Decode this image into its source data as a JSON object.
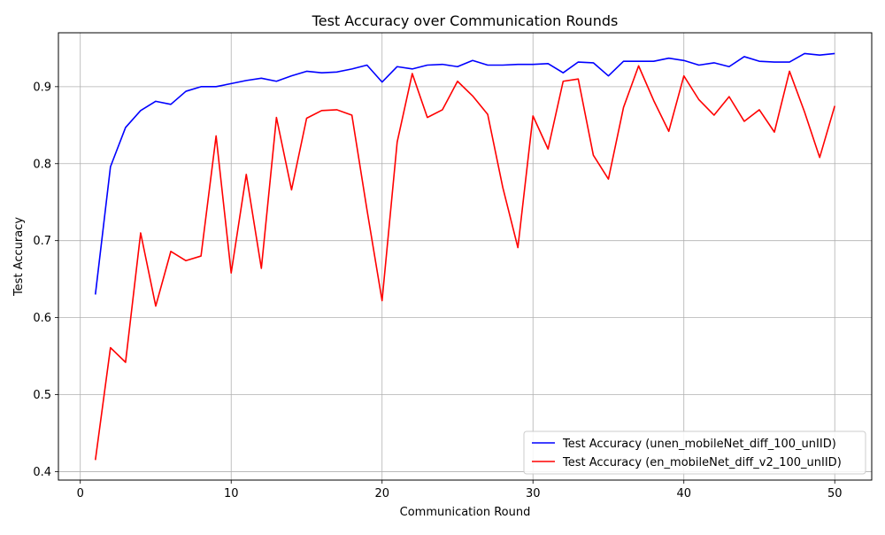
{
  "chart_data": {
    "type": "line",
    "title": "Test Accuracy over Communication Rounds",
    "xlabel": "Communication Round",
    "ylabel": "Test Accuracy",
    "xlim": [
      -1.45,
      52.45
    ],
    "ylim": [
      0.389,
      0.97
    ],
    "xticks": [
      0,
      10,
      20,
      30,
      40,
      50
    ],
    "yticks": [
      0.4,
      0.5,
      0.6,
      0.7,
      0.8,
      0.9
    ],
    "grid": true,
    "legend_position": "lower-right",
    "x": [
      1,
      2,
      3,
      4,
      5,
      6,
      7,
      8,
      9,
      10,
      11,
      12,
      13,
      14,
      15,
      16,
      17,
      18,
      19,
      20,
      21,
      22,
      23,
      24,
      25,
      26,
      27,
      28,
      29,
      30,
      31,
      32,
      33,
      34,
      35,
      36,
      37,
      38,
      39,
      40,
      41,
      42,
      43,
      44,
      45,
      46,
      47,
      48,
      49,
      50
    ],
    "series": [
      {
        "name": "Test Accuracy (unen_mobileNet_diff_100_unIID)",
        "color": "#0000ff",
        "values": [
          0.63,
          0.796,
          0.847,
          0.869,
          0.881,
          0.877,
          0.894,
          0.9,
          0.9,
          0.904,
          0.908,
          0.911,
          0.907,
          0.914,
          0.92,
          0.918,
          0.919,
          0.923,
          0.928,
          0.906,
          0.926,
          0.923,
          0.928,
          0.929,
          0.926,
          0.934,
          0.928,
          0.928,
          0.929,
          0.929,
          0.93,
          0.918,
          0.932,
          0.931,
          0.914,
          0.933,
          0.933,
          0.933,
          0.937,
          0.934,
          0.928,
          0.931,
          0.926,
          0.939,
          0.933,
          0.932,
          0.932,
          0.943,
          0.941,
          0.943
        ]
      },
      {
        "name": "Test Accuracy (en_mobileNet_diff_v2_100_unIID)",
        "color": "#ff0000",
        "values": [
          0.415,
          0.561,
          0.542,
          0.71,
          0.615,
          0.686,
          0.674,
          0.68,
          0.836,
          0.658,
          0.786,
          0.664,
          0.86,
          0.766,
          0.859,
          0.869,
          0.87,
          0.863,
          0.74,
          0.622,
          0.828,
          0.917,
          0.86,
          0.87,
          0.907,
          0.888,
          0.864,
          0.769,
          0.691,
          0.862,
          0.819,
          0.907,
          0.91,
          0.811,
          0.78,
          0.873,
          0.927,
          0.882,
          0.842,
          0.914,
          0.883,
          0.863,
          0.887,
          0.855,
          0.87,
          0.841,
          0.92,
          0.867,
          0.808,
          0.875
        ]
      }
    ]
  }
}
